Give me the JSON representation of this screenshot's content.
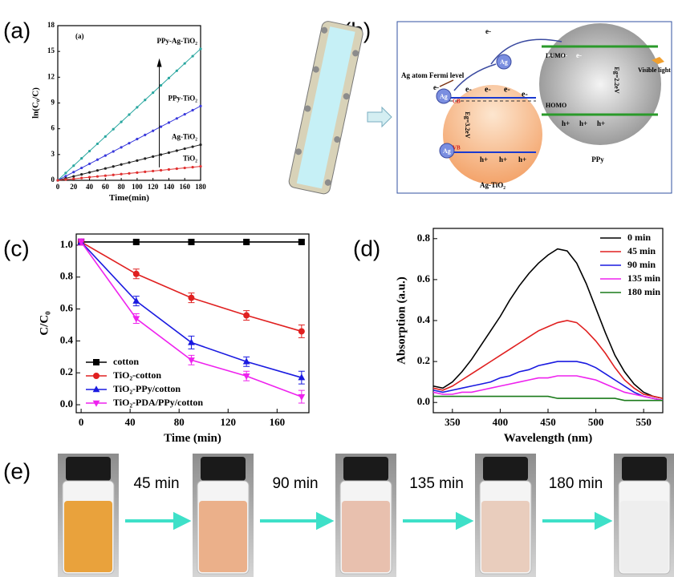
{
  "panel_labels": [
    "(a)",
    "(b)",
    "(c)",
    "(d)",
    "(e)"
  ],
  "chart_data": [
    {
      "type": "line",
      "title": "(a)",
      "xlabel": "Time(min)",
      "ylabel": "ln(C₀/C)",
      "legend": "end",
      "font": 9,
      "x": [
        0,
        10,
        20,
        30,
        40,
        50,
        60,
        70,
        80,
        90,
        100,
        110,
        120,
        130,
        140,
        150,
        160,
        170,
        180
      ],
      "xlim": [
        0,
        180
      ],
      "xticks": [
        0,
        20,
        40,
        60,
        80,
        100,
        120,
        140,
        160,
        180
      ],
      "ylim": [
        0,
        18
      ],
      "yticks": [
        0,
        3,
        6,
        9,
        12,
        15,
        18
      ],
      "series": [
        {
          "name": "PPy-Ag-TiO₂",
          "color": "#2aa7a0",
          "marker": "circle",
          "values": [
            0,
            0.85,
            1.7,
            2.55,
            3.4,
            4.25,
            5.1,
            5.95,
            6.8,
            7.65,
            8.5,
            9.35,
            10.2,
            11.05,
            11.9,
            12.75,
            13.6,
            14.45,
            15.3
          ]
        },
        {
          "name": "PPy-TiO₂",
          "color": "#3a3adc",
          "marker": "circle",
          "values": [
            0,
            0.48,
            0.96,
            1.44,
            1.92,
            2.4,
            2.88,
            3.36,
            3.84,
            4.32,
            4.8,
            5.28,
            5.76,
            6.24,
            6.72,
            7.2,
            7.68,
            8.16,
            8.64
          ]
        },
        {
          "name": "Ag-TiO₂",
          "color": "#222222",
          "marker": "circle",
          "values": [
            0,
            0.23,
            0.46,
            0.69,
            0.92,
            1.15,
            1.38,
            1.61,
            1.84,
            2.07,
            2.3,
            2.53,
            2.76,
            2.99,
            3.22,
            3.45,
            3.68,
            3.91,
            4.14
          ]
        },
        {
          "name": "TiO₂",
          "color": "#e03030",
          "marker": "circle",
          "values": [
            0,
            0.09,
            0.18,
            0.27,
            0.36,
            0.45,
            0.54,
            0.63,
            0.72,
            0.81,
            0.9,
            0.99,
            1.08,
            1.17,
            1.26,
            1.35,
            1.44,
            1.53,
            1.62
          ]
        }
      ]
    },
    {
      "type": "line",
      "xlabel": "Time (min)",
      "ylabel": "C/C₀",
      "legend": "lower left",
      "font": 13,
      "x": [
        0,
        45,
        90,
        135,
        180
      ],
      "xlim": [
        -4,
        186
      ],
      "xticks": [
        0,
        40,
        80,
        120,
        160
      ],
      "ylim": [
        -0.05,
        1.07
      ],
      "yticks": [
        {
          "value": 0,
          "label": "0.0"
        },
        0.2,
        0.4,
        0.6,
        0.8,
        {
          "value": 1,
          "label": "1.0"
        }
      ],
      "series": [
        {
          "name": "cotton",
          "color": "#000000",
          "marker": "square",
          "values": [
            1.02,
            1.02,
            1.02,
            1.02,
            1.02
          ],
          "errors": [
            0.01,
            0.01,
            0.01,
            0.01,
            0.01
          ]
        },
        {
          "name": "TiO₂-cotton",
          "color": "#e02020",
          "marker": "circle",
          "values": [
            1.02,
            0.82,
            0.67,
            0.56,
            0.46
          ],
          "errors": [
            0.02,
            0.03,
            0.03,
            0.03,
            0.04
          ]
        },
        {
          "name": "TiO₂-PPy/cotton",
          "color": "#1a1ae0",
          "marker": "triangle",
          "values": [
            1.02,
            0.65,
            0.39,
            0.27,
            0.17
          ],
          "errors": [
            0.02,
            0.03,
            0.04,
            0.03,
            0.04
          ]
        },
        {
          "name": "TiO₂-PDA/PPy/cotton",
          "color": "#ee22ee",
          "marker": "triangle-down",
          "values": [
            1.02,
            0.54,
            0.28,
            0.18,
            0.05
          ],
          "errors": [
            0.02,
            0.03,
            0.03,
            0.03,
            0.04
          ]
        }
      ]
    },
    {
      "type": "line",
      "xlabel": "Wavelength (nm)",
      "ylabel": "Absorption (a.u.)",
      "legend": "upper right",
      "font": 13,
      "x": [
        330,
        340,
        350,
        360,
        370,
        380,
        390,
        400,
        410,
        420,
        430,
        440,
        450,
        460,
        470,
        480,
        490,
        500,
        510,
        520,
        530,
        540,
        550,
        560,
        570
      ],
      "xlim": [
        330,
        570
      ],
      "xticks": [
        350,
        400,
        450,
        500,
        550
      ],
      "ylim": [
        -0.05,
        0.85
      ],
      "yticks": [
        {
          "value": 0,
          "label": "0.0"
        },
        0.2,
        0.4,
        0.6,
        0.8
      ],
      "series": [
        {
          "name": "0 min",
          "color": "#000000",
          "marker": null,
          "values": [
            0.08,
            0.07,
            0.1,
            0.15,
            0.21,
            0.28,
            0.35,
            0.42,
            0.5,
            0.57,
            0.63,
            0.68,
            0.72,
            0.75,
            0.74,
            0.68,
            0.58,
            0.46,
            0.34,
            0.23,
            0.15,
            0.09,
            0.05,
            0.03,
            0.02
          ]
        },
        {
          "name": "45 min",
          "color": "#e02020",
          "marker": null,
          "values": [
            0.07,
            0.06,
            0.08,
            0.11,
            0.14,
            0.17,
            0.2,
            0.23,
            0.26,
            0.29,
            0.32,
            0.35,
            0.37,
            0.39,
            0.4,
            0.39,
            0.35,
            0.3,
            0.24,
            0.17,
            0.11,
            0.07,
            0.04,
            0.03,
            0.02
          ]
        },
        {
          "name": "90 min",
          "color": "#1a1ae0",
          "marker": null,
          "values": [
            0.06,
            0.05,
            0.06,
            0.07,
            0.08,
            0.09,
            0.1,
            0.12,
            0.13,
            0.15,
            0.16,
            0.18,
            0.19,
            0.2,
            0.2,
            0.2,
            0.19,
            0.17,
            0.14,
            0.11,
            0.08,
            0.05,
            0.03,
            0.02,
            0.01
          ]
        },
        {
          "name": "135 min",
          "color": "#ee22ee",
          "marker": null,
          "values": [
            0.05,
            0.04,
            0.04,
            0.05,
            0.05,
            0.06,
            0.07,
            0.08,
            0.09,
            0.1,
            0.11,
            0.12,
            0.12,
            0.13,
            0.13,
            0.13,
            0.12,
            0.11,
            0.09,
            0.07,
            0.05,
            0.04,
            0.03,
            0.02,
            0.01
          ]
        },
        {
          "name": "180 min",
          "color": "#1a7a1a",
          "marker": null,
          "values": [
            0.03,
            0.03,
            0.03,
            0.03,
            0.03,
            0.03,
            0.03,
            0.03,
            0.03,
            0.03,
            0.03,
            0.03,
            0.03,
            0.02,
            0.02,
            0.02,
            0.02,
            0.02,
            0.02,
            0.02,
            0.01,
            0.01,
            0.01,
            0.01,
            0.01
          ]
        }
      ]
    }
  ],
  "diagram": {
    "labels": [
      "Ag atom Fermi level",
      "e-",
      "e-",
      "e-",
      "e-",
      "e-",
      "e-",
      "e-",
      "e-",
      "e-",
      "Ag",
      "Ag",
      "Ag",
      "CB",
      "VB",
      "Eg=3.2eV",
      "h+",
      "h+",
      "h+",
      "LUMO",
      "HOMO",
      "Eg=2.2eV",
      "h+",
      "h+",
      "h+",
      "Visible light",
      "PPy",
      "Ag-TiO₂"
    ]
  },
  "photos": {
    "steps": [
      "45 min",
      "90 min",
      "135 min",
      "180 min"
    ]
  }
}
